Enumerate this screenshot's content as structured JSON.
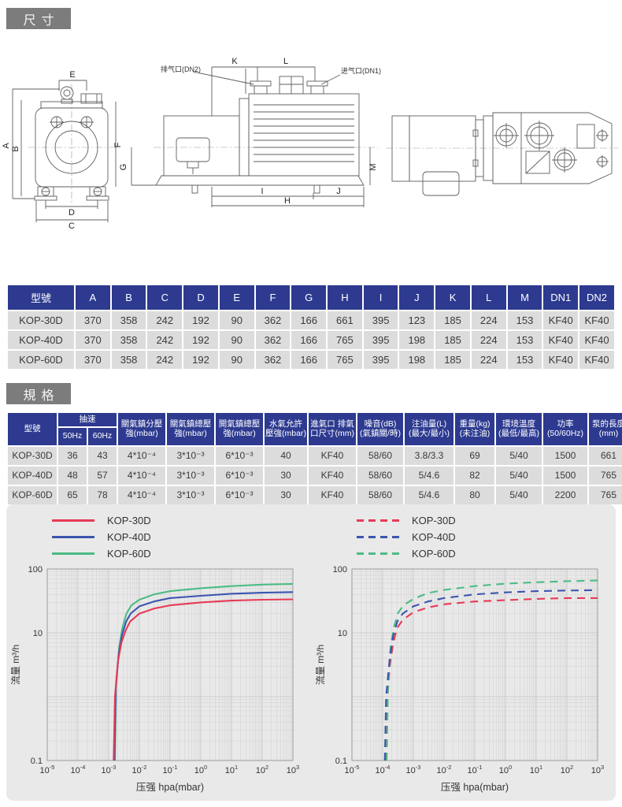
{
  "sections": {
    "dimensions_title": "尺寸",
    "specs_title": "規格"
  },
  "drawing": {
    "labels": {
      "A": "A",
      "B": "B",
      "C": "C",
      "D": "D",
      "E": "E",
      "F": "F",
      "G": "G",
      "H": "H",
      "I": "I",
      "J": "J",
      "K": "K",
      "L": "L",
      "M": "M"
    },
    "exhaust_label": "排气口(DN2)",
    "inlet_label": "进气口(DN1)"
  },
  "dim_table": {
    "headers": [
      "型號",
      "A",
      "B",
      "C",
      "D",
      "E",
      "F",
      "G",
      "H",
      "I",
      "J",
      "K",
      "L",
      "M",
      "DN1",
      "DN2"
    ],
    "rows": [
      [
        "KOP-30D",
        "370",
        "358",
        "242",
        "192",
        "90",
        "362",
        "166",
        "661",
        "395",
        "123",
        "185",
        "224",
        "153",
        "KF40",
        "KF40"
      ],
      [
        "KOP-40D",
        "370",
        "358",
        "242",
        "192",
        "90",
        "362",
        "166",
        "765",
        "395",
        "198",
        "185",
        "224",
        "153",
        "KF40",
        "KF40"
      ],
      [
        "KOP-60D",
        "370",
        "358",
        "242",
        "192",
        "90",
        "362",
        "166",
        "765",
        "395",
        "198",
        "185",
        "224",
        "153",
        "KF40",
        "KF40"
      ]
    ]
  },
  "spec_table": {
    "model_header": "型號",
    "speed_header": "抽速",
    "speed_sub": [
      "50Hz",
      "60Hz"
    ],
    "col_headers": [
      "關氣鎮分壓\n強(mbar)",
      "關氣鎮總壓\n強(mbar)",
      "開氣鎮總壓\n強(mbar)",
      "水氣允許\n壓強(mbar)",
      "進氣口 排氣\n口尺寸(mm)",
      "噪音(dB)\n(氣鎮關/時)",
      "注油量(L)\n(最大/最小)",
      "重量(kg)\n(未注油)",
      "環境溫度\n(最低/最高)",
      "功率\n(50/60Hz)",
      "泵的長度\n(mm)"
    ],
    "rows": [
      [
        "KOP-30D",
        "36",
        "43",
        "4*10⁻⁴",
        "3*10⁻³",
        "6*10⁻³",
        "40",
        "KF40",
        "58/60",
        "3.8/3.3",
        "69",
        "5/40",
        "1500",
        "661"
      ],
      [
        "KOP-40D",
        "48",
        "57",
        "4*10⁻⁴",
        "3*10⁻³",
        "6*10⁻³",
        "30",
        "KF40",
        "58/60",
        "5/4.6",
        "82",
        "5/40",
        "1500",
        "765"
      ],
      [
        "KOP-60D",
        "65",
        "78",
        "4*10⁻⁴",
        "3*10⁻³",
        "6*10⁻³",
        "30",
        "KF40",
        "58/60",
        "5/4.6",
        "80",
        "5/40",
        "2200",
        "765"
      ]
    ]
  },
  "chart_data": [
    {
      "type": "line",
      "xscale": "log",
      "yscale": "log",
      "xlim": [
        1e-05,
        1000
      ],
      "ylim": [
        0.1,
        100
      ],
      "x_tick_exponents": [
        -5,
        -4,
        -3,
        -2,
        -1,
        0,
        1,
        2,
        3
      ],
      "y_ticks": [
        {
          "v": 100,
          "label": "100"
        },
        {
          "v": 10,
          "label": "10"
        },
        {
          "v": 1,
          "label": ""
        },
        {
          "v": 0.1,
          "label": "0.1"
        }
      ],
      "xlabel": "压强 hpa(mbar)",
      "ylabel": "流量 m³/h",
      "grid": true,
      "legend_position": "top",
      "line_style": "solid",
      "draw_order": [
        2,
        1,
        0
      ],
      "series": [
        {
          "name": "KOP-30D",
          "color": "#e83a56",
          "points": [
            [
              0.00145,
              0.1
            ],
            [
              0.0016,
              1
            ],
            [
              0.002,
              3.5
            ],
            [
              0.0026,
              7
            ],
            [
              0.0036,
              11
            ],
            [
              0.005,
              15
            ],
            [
              0.01,
              20
            ],
            [
              0.03,
              24
            ],
            [
              0.1,
              27
            ],
            [
              1,
              30
            ],
            [
              10,
              32
            ],
            [
              100,
              33
            ],
            [
              1000,
              33.5
            ]
          ]
        },
        {
          "name": "KOP-40D",
          "color": "#3b55b0",
          "points": [
            [
              0.00155,
              0.1
            ],
            [
              0.0017,
              1.3
            ],
            [
              0.0021,
              4.5
            ],
            [
              0.0027,
              9
            ],
            [
              0.0037,
              15
            ],
            [
              0.0052,
              20
            ],
            [
              0.01,
              26
            ],
            [
              0.03,
              31
            ],
            [
              0.1,
              35
            ],
            [
              1,
              38
            ],
            [
              10,
              41
            ],
            [
              100,
              42.5
            ],
            [
              1000,
              43.5
            ]
          ]
        },
        {
          "name": "KOP-60D",
          "color": "#4dbb85",
          "points": [
            [
              0.0016,
              0.1
            ],
            [
              0.00175,
              1.6
            ],
            [
              0.0022,
              6
            ],
            [
              0.0028,
              12
            ],
            [
              0.0038,
              20
            ],
            [
              0.0055,
              27
            ],
            [
              0.01,
              33
            ],
            [
              0.03,
              40
            ],
            [
              0.1,
              45
            ],
            [
              1,
              50
            ],
            [
              10,
              54
            ],
            [
              100,
              57
            ],
            [
              1000,
              58.5
            ]
          ]
        }
      ]
    },
    {
      "type": "line",
      "xscale": "log",
      "yscale": "log",
      "xlim": [
        1e-05,
        1000
      ],
      "ylim": [
        0.1,
        100
      ],
      "x_tick_exponents": [
        -5,
        -4,
        -3,
        -2,
        -1,
        0,
        1,
        2,
        3
      ],
      "y_ticks": [
        {
          "v": 100,
          "label": "100"
        },
        {
          "v": 10,
          "label": "10"
        },
        {
          "v": 1,
          "label": ""
        },
        {
          "v": 0.1,
          "label": "0.1"
        }
      ],
      "xlabel": "压强 hpa(mbar)",
      "ylabel": "流量 m³/h",
      "grid": true,
      "legend_position": "top",
      "line_style": "dashed",
      "draw_order": [
        0,
        2,
        1
      ],
      "series": [
        {
          "name": "KOP-30D",
          "color": "#e83a56",
          "points": [
            [
              0.00013,
              0.1
            ],
            [
              0.00014,
              0.8
            ],
            [
              0.00017,
              3
            ],
            [
              0.00022,
              7
            ],
            [
              0.0003,
              12
            ],
            [
              0.00045,
              16
            ],
            [
              0.001,
              21
            ],
            [
              0.003,
              25
            ],
            [
              0.01,
              28
            ],
            [
              0.1,
              31
            ],
            [
              1,
              32.5
            ],
            [
              10,
              34
            ],
            [
              100,
              35
            ],
            [
              1000,
              35
            ]
          ]
        },
        {
          "name": "KOP-40D",
          "color": "#3b55b0",
          "points": [
            [
              0.000118,
              0.1
            ],
            [
              0.00013,
              1
            ],
            [
              0.00017,
              4
            ],
            [
              0.00022,
              9
            ],
            [
              0.0003,
              15
            ],
            [
              0.00045,
              20
            ],
            [
              0.001,
              26
            ],
            [
              0.003,
              31
            ],
            [
              0.01,
              35
            ],
            [
              0.1,
              40
            ],
            [
              1,
              43
            ],
            [
              10,
              45
            ],
            [
              100,
              46
            ],
            [
              1000,
              46.5
            ]
          ]
        },
        {
          "name": "KOP-60D",
          "color": "#4dbb85",
          "points": [
            [
              0.000135,
              0.1
            ],
            [
              0.00015,
              1.5
            ],
            [
              0.00018,
              6
            ],
            [
              0.00023,
              12
            ],
            [
              0.00031,
              20
            ],
            [
              0.00047,
              27
            ],
            [
              0.001,
              34
            ],
            [
              0.003,
              42
            ],
            [
              0.01,
              47
            ],
            [
              0.1,
              54
            ],
            [
              1,
              59
            ],
            [
              10,
              62
            ],
            [
              100,
              64.5
            ],
            [
              1000,
              66
            ]
          ]
        }
      ]
    }
  ]
}
